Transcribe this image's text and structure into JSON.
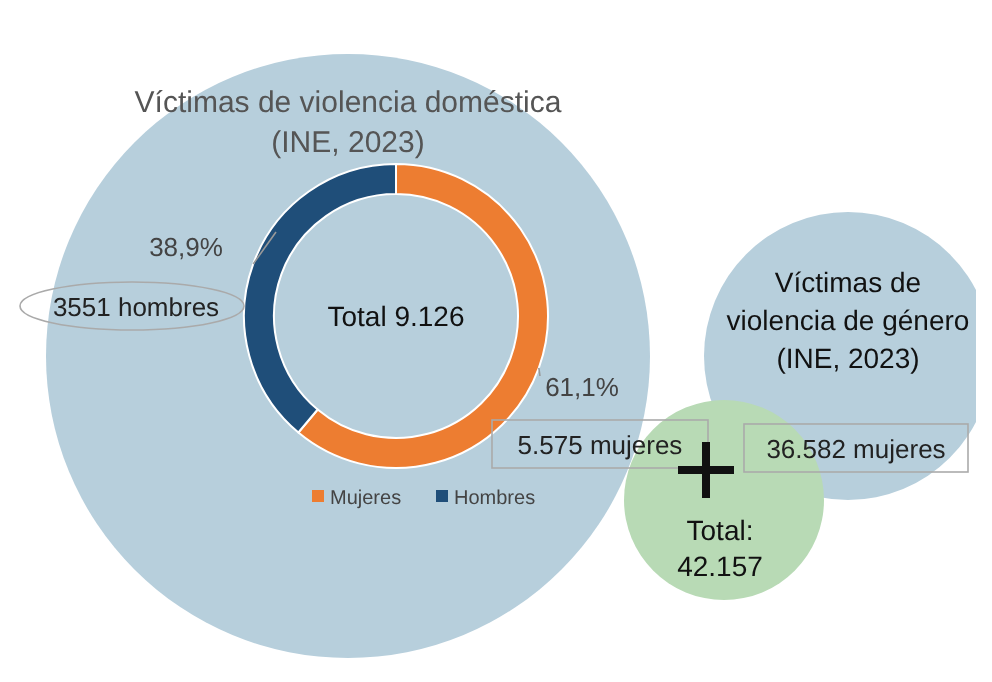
{
  "chart_data": {
    "type": "donut",
    "title": "Víctimas de violencia doméstica (INE, 2023)",
    "categories": [
      "Mujeres",
      "Hombres"
    ],
    "values": [
      61.1,
      38.9
    ],
    "colors": [
      "#ed7d31",
      "#1f4e79"
    ],
    "value_labels": [
      "61,1%",
      "38,9%"
    ],
    "legend": "bottom",
    "annotations": [
      "Total 9.126",
      "5.575 mujeres",
      "3551 hombres",
      "Víctimas de violencia de género (INE, 2023)",
      "36.582 mujeres",
      "Total: 42.157"
    ]
  }
}
